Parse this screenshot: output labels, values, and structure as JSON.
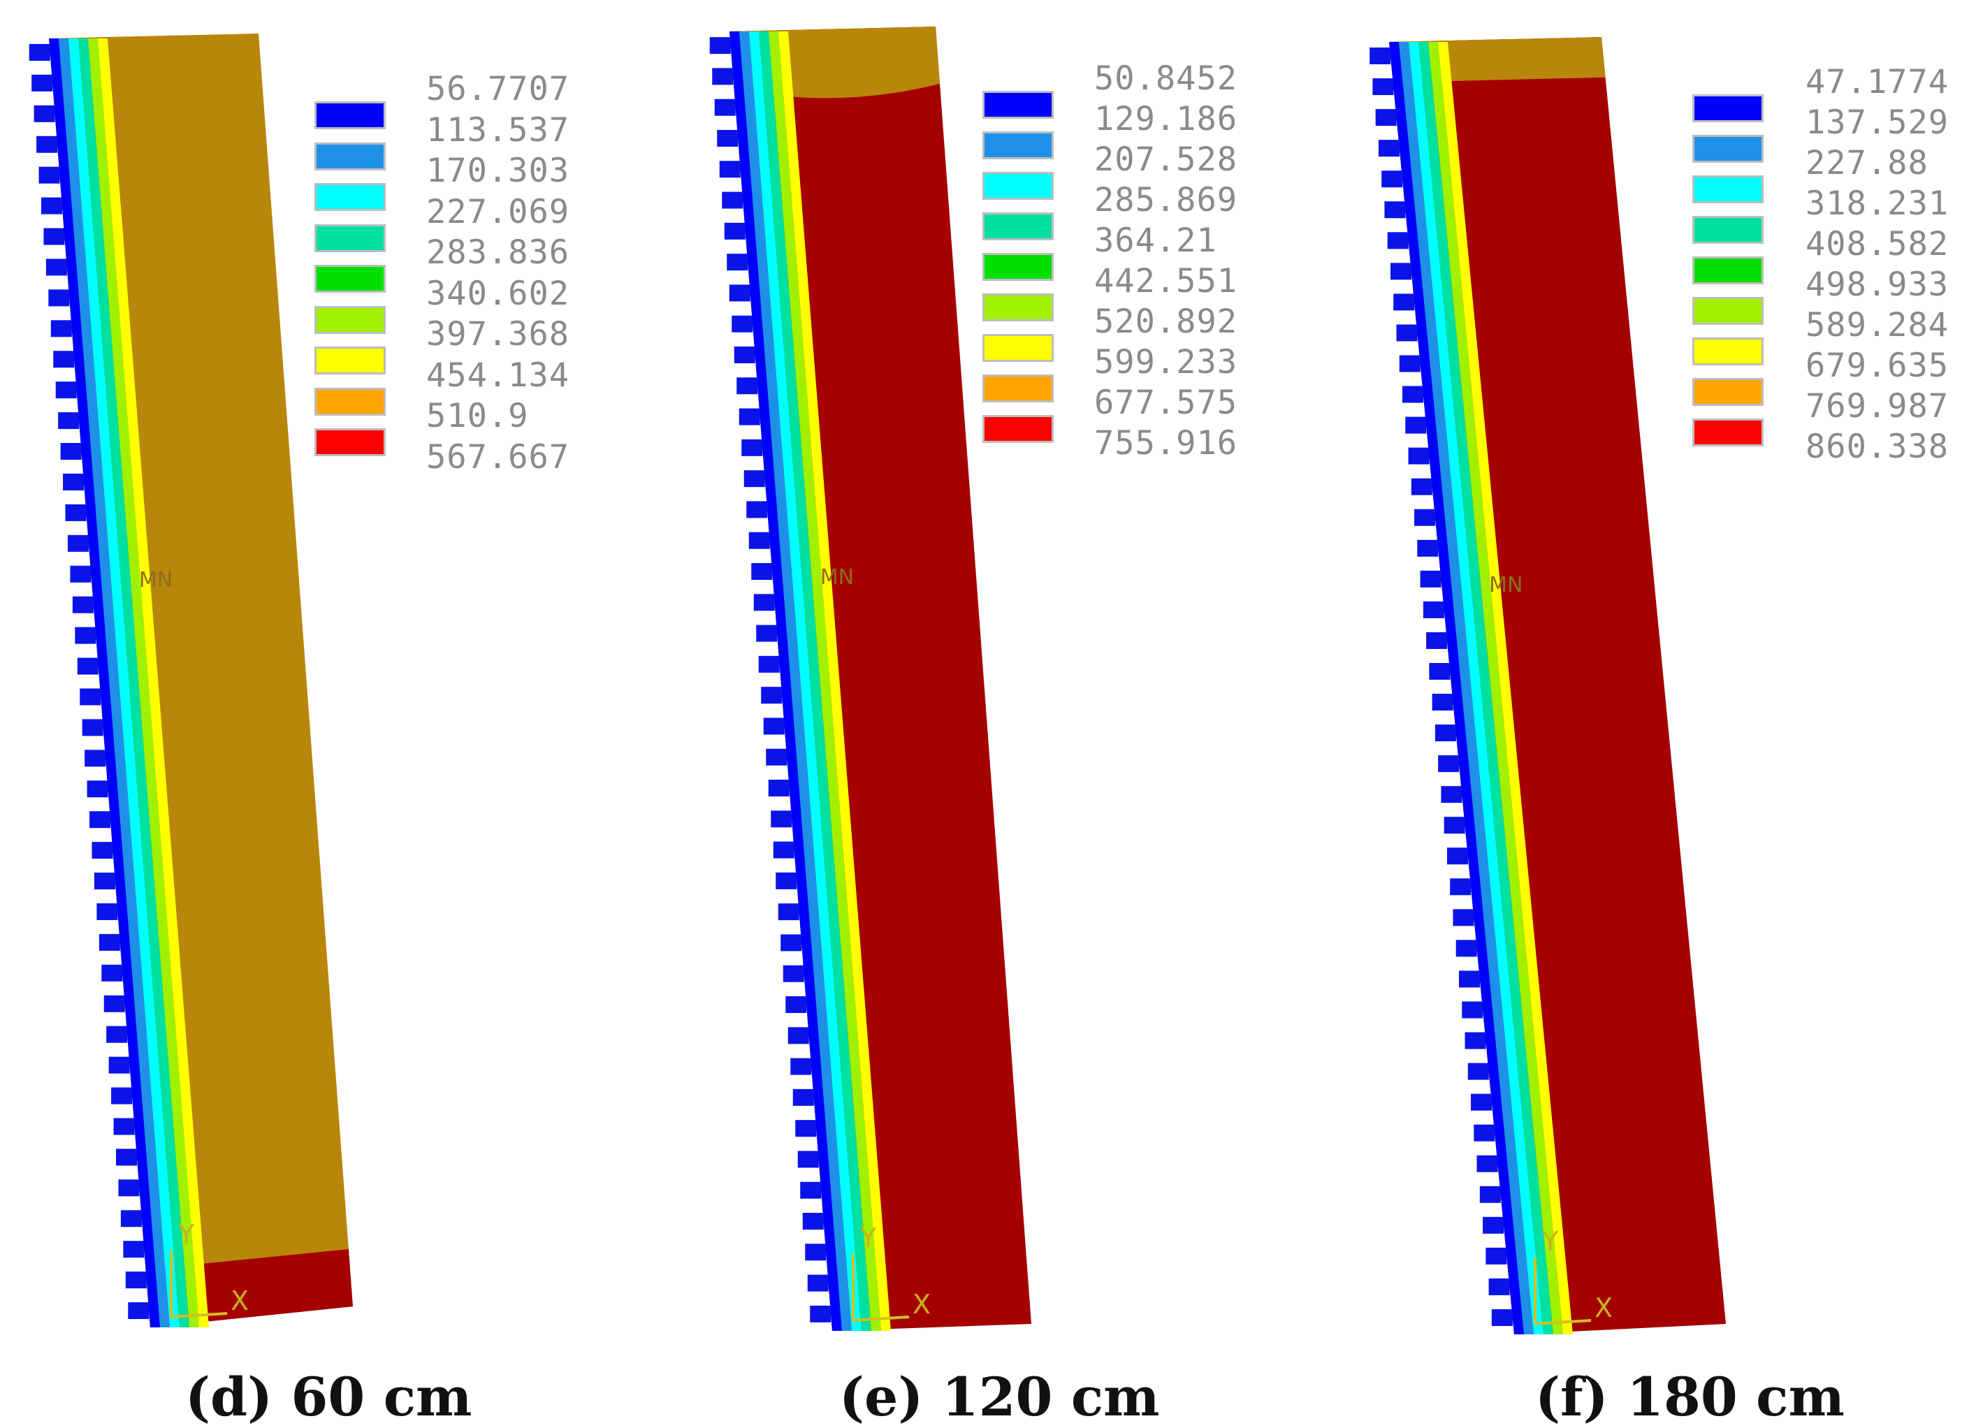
{
  "legend_colors": [
    "#0000ff",
    "#1e90e8",
    "#00ffff",
    "#00e0a0",
    "#00e000",
    "#a0f000",
    "#ffff00",
    "#ffa500",
    "#ff0000"
  ],
  "panels": [
    {
      "caption": "(d) 60 cm",
      "legend": [
        "56.7707",
        "113.537",
        "170.303",
        "227.069",
        "283.836",
        "340.602",
        "397.368",
        "454.134",
        "510.9",
        "567.667"
      ],
      "body_color": "#b8860b",
      "bottom_band_color": "#a50000",
      "top_band_color": "#a50000",
      "mn_label": "MN",
      "axis_y": "Y",
      "axis_x": "X"
    },
    {
      "caption": "(e) 120 cm",
      "legend": [
        "50.8452",
        "129.186",
        "207.528",
        "285.869",
        "364.21",
        "442.551",
        "520.892",
        "599.233",
        "677.575",
        "755.916"
      ],
      "body_color": "#a50000",
      "bottom_band_color": "#a50000",
      "top_band_color": "#b8860b",
      "mn_label": "MN",
      "axis_y": "Y",
      "axis_x": "X"
    },
    {
      "caption": "(f) 180 cm",
      "legend": [
        "47.1774",
        "137.529",
        "227.88",
        "318.231",
        "408.582",
        "498.933",
        "589.284",
        "679.635",
        "769.987",
        "860.338"
      ],
      "body_color": "#a50000",
      "bottom_band_color": "#a50000",
      "top_band_color": "#b8860b",
      "mn_label": "MN",
      "axis_y": "Y",
      "axis_x": "X"
    }
  ]
}
